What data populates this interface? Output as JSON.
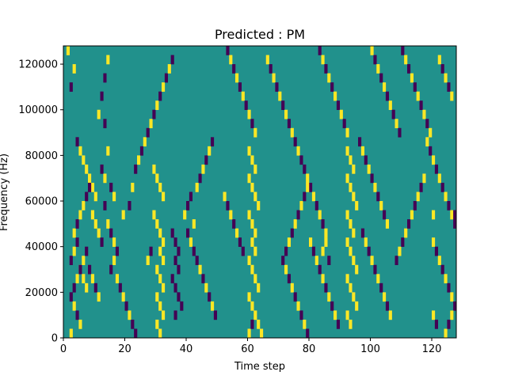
{
  "chart_data": {
    "type": "heatmap",
    "title": "Predicted : PM",
    "xlabel": "Time step",
    "ylabel": "Frequency (Hz)",
    "xlim": [
      0,
      128
    ],
    "ylim": [
      0,
      128000
    ],
    "x_ticks": [
      0,
      20,
      40,
      60,
      80,
      100,
      120
    ],
    "y_ticks": [
      0,
      20000,
      40000,
      60000,
      80000,
      100000,
      120000
    ],
    "x_tick_labels": [
      "0",
      "20",
      "40",
      "60",
      "80",
      "100",
      "120"
    ],
    "y_tick_labels": [
      "0",
      "20000",
      "40000",
      "60000",
      "80000",
      "100000",
      "120000"
    ],
    "n_time_steps": 128,
    "n_frequency_bins": 32,
    "bin_height_hz": 4000,
    "value_levels": [
      -1,
      0,
      1
    ],
    "colormap": {
      "-1": "#440154",
      "0": "#21918c",
      "1": "#fde725"
    },
    "background_value": 0,
    "grid": false,
    "cells_note": "cells lists [time_step, frequency_bin_index, value] for non-background cells; bin index i spans i*4000 to (i+1)*4000 Hz",
    "cells": [
      [
        1,
        31,
        1
      ],
      [
        2,
        27,
        -1
      ],
      [
        3,
        29,
        1
      ],
      [
        4,
        21,
        -1
      ],
      [
        5,
        20,
        1
      ],
      [
        6,
        19,
        1
      ],
      [
        7,
        18,
        1
      ],
      [
        8,
        17,
        1
      ],
      [
        9,
        16,
        1
      ],
      [
        10,
        15,
        1
      ],
      [
        3,
        11,
        1
      ],
      [
        4,
        12,
        -1
      ],
      [
        5,
        13,
        1
      ],
      [
        6,
        14,
        1
      ],
      [
        7,
        15,
        -1
      ],
      [
        8,
        16,
        -1
      ],
      [
        9,
        13,
        1
      ],
      [
        10,
        12,
        1
      ],
      [
        11,
        11,
        1
      ],
      [
        12,
        10,
        -1
      ],
      [
        2,
        8,
        -1
      ],
      [
        3,
        9,
        1
      ],
      [
        4,
        10,
        -1
      ],
      [
        5,
        7,
        1
      ],
      [
        6,
        8,
        1
      ],
      [
        7,
        9,
        -1
      ],
      [
        8,
        7,
        -1
      ],
      [
        9,
        6,
        1
      ],
      [
        10,
        5,
        -1
      ],
      [
        11,
        4,
        1
      ],
      [
        2,
        4,
        -1
      ],
      [
        3,
        3,
        1
      ],
      [
        4,
        2,
        -1
      ],
      [
        5,
        1,
        1
      ],
      [
        2,
        0,
        1
      ],
      [
        3,
        5,
        -1
      ],
      [
        4,
        6,
        1
      ],
      [
        5,
        7,
        -1
      ],
      [
        6,
        6,
        1
      ],
      [
        7,
        5,
        1
      ],
      [
        13,
        28,
        -1
      ],
      [
        14,
        30,
        1
      ],
      [
        12,
        26,
        -1
      ],
      [
        11,
        24,
        1
      ],
      [
        13,
        23,
        -1
      ],
      [
        14,
        20,
        1
      ],
      [
        12,
        18,
        -1
      ],
      [
        13,
        17,
        1
      ],
      [
        15,
        16,
        -1
      ],
      [
        16,
        15,
        1
      ],
      [
        13,
        14,
        -1
      ],
      [
        14,
        12,
        1
      ],
      [
        15,
        11,
        -1
      ],
      [
        16,
        10,
        1
      ],
      [
        17,
        9,
        -1
      ],
      [
        16,
        8,
        1
      ],
      [
        15,
        7,
        -1
      ],
      [
        17,
        6,
        1
      ],
      [
        18,
        5,
        -1
      ],
      [
        19,
        4,
        1
      ],
      [
        20,
        3,
        -1
      ],
      [
        21,
        2,
        1
      ],
      [
        22,
        1,
        -1
      ],
      [
        23,
        0,
        -1
      ],
      [
        19,
        13,
        1
      ],
      [
        21,
        14,
        -1
      ],
      [
        22,
        16,
        1
      ],
      [
        23,
        18,
        -1
      ],
      [
        24,
        19,
        1
      ],
      [
        25,
        20,
        -1
      ],
      [
        26,
        21,
        1
      ],
      [
        27,
        22,
        -1
      ],
      [
        28,
        23,
        1
      ],
      [
        29,
        24,
        -1
      ],
      [
        30,
        25,
        1
      ],
      [
        31,
        26,
        -1
      ],
      [
        32,
        27,
        1
      ],
      [
        33,
        28,
        -1
      ],
      [
        34,
        29,
        1
      ],
      [
        35,
        30,
        -1
      ],
      [
        29,
        18,
        1
      ],
      [
        30,
        17,
        1
      ],
      [
        31,
        16,
        1
      ],
      [
        32,
        15,
        1
      ],
      [
        30,
        12,
        1
      ],
      [
        31,
        11,
        1
      ],
      [
        32,
        10,
        1
      ],
      [
        31,
        9,
        1
      ],
      [
        32,
        8,
        1
      ],
      [
        30,
        7,
        1
      ],
      [
        31,
        6,
        1
      ],
      [
        32,
        5,
        1
      ],
      [
        30,
        4,
        1
      ],
      [
        31,
        3,
        1
      ],
      [
        32,
        2,
        1
      ],
      [
        30,
        1,
        1
      ],
      [
        31,
        0,
        1
      ],
      [
        29,
        13,
        1
      ],
      [
        28,
        9,
        -1
      ],
      [
        27,
        8,
        1
      ],
      [
        35,
        11,
        -1
      ],
      [
        36,
        10,
        -1
      ],
      [
        37,
        9,
        -1
      ],
      [
        36,
        8,
        -1
      ],
      [
        37,
        7,
        -1
      ],
      [
        35,
        6,
        -1
      ],
      [
        36,
        5,
        -1
      ],
      [
        37,
        4,
        -1
      ],
      [
        38,
        3,
        -1
      ],
      [
        36,
        2,
        -1
      ],
      [
        39,
        13,
        1
      ],
      [
        40,
        14,
        -1
      ],
      [
        41,
        15,
        -1
      ],
      [
        42,
        12,
        1
      ],
      [
        43,
        16,
        1
      ],
      [
        44,
        17,
        -1
      ],
      [
        45,
        18,
        1
      ],
      [
        46,
        19,
        -1
      ],
      [
        47,
        20,
        1
      ],
      [
        48,
        21,
        -1
      ],
      [
        40,
        11,
        -1
      ],
      [
        41,
        10,
        1
      ],
      [
        42,
        9,
        -1
      ],
      [
        43,
        8,
        -1
      ],
      [
        44,
        7,
        1
      ],
      [
        45,
        6,
        -1
      ],
      [
        46,
        5,
        1
      ],
      [
        47,
        4,
        -1
      ],
      [
        48,
        3,
        1
      ],
      [
        49,
        2,
        -1
      ],
      [
        53,
        31,
        -1
      ],
      [
        54,
        30,
        1
      ],
      [
        55,
        29,
        -1
      ],
      [
        56,
        28,
        1
      ],
      [
        57,
        27,
        -1
      ],
      [
        58,
        26,
        1
      ],
      [
        59,
        25,
        -1
      ],
      [
        60,
        24,
        1
      ],
      [
        61,
        23,
        -1
      ],
      [
        62,
        22,
        1
      ],
      [
        60,
        20,
        1
      ],
      [
        61,
        19,
        1
      ],
      [
        62,
        18,
        1
      ],
      [
        60,
        17,
        1
      ],
      [
        61,
        16,
        1
      ],
      [
        62,
        15,
        1
      ],
      [
        63,
        14,
        1
      ],
      [
        60,
        13,
        1
      ],
      [
        61,
        12,
        1
      ],
      [
        62,
        11,
        1
      ],
      [
        61,
        10,
        1
      ],
      [
        62,
        9,
        1
      ],
      [
        60,
        8,
        1
      ],
      [
        61,
        7,
        1
      ],
      [
        62,
        6,
        1
      ],
      [
        63,
        5,
        1
      ],
      [
        60,
        4,
        1
      ],
      [
        61,
        3,
        1
      ],
      [
        62,
        2,
        1
      ],
      [
        63,
        1,
        1
      ],
      [
        64,
        0,
        1
      ],
      [
        60,
        0,
        1
      ],
      [
        61,
        1,
        -1
      ],
      [
        58,
        9,
        -1
      ],
      [
        57,
        10,
        -1
      ],
      [
        56,
        11,
        1
      ],
      [
        55,
        12,
        -1
      ],
      [
        54,
        13,
        1
      ],
      [
        53,
        14,
        -1
      ],
      [
        52,
        15,
        1
      ],
      [
        66,
        30,
        1
      ],
      [
        67,
        29,
        -1
      ],
      [
        68,
        28,
        1
      ],
      [
        69,
        27,
        -1
      ],
      [
        70,
        26,
        1
      ],
      [
        71,
        25,
        -1
      ],
      [
        72,
        24,
        1
      ],
      [
        73,
        23,
        -1
      ],
      [
        74,
        22,
        1
      ],
      [
        75,
        21,
        -1
      ],
      [
        76,
        20,
        1
      ],
      [
        77,
        19,
        -1
      ],
      [
        78,
        18,
        -1
      ],
      [
        79,
        17,
        1
      ],
      [
        80,
        16,
        -1
      ],
      [
        81,
        15,
        1
      ],
      [
        82,
        14,
        -1
      ],
      [
        83,
        13,
        1
      ],
      [
        84,
        12,
        -1
      ],
      [
        85,
        11,
        1
      ],
      [
        71,
        8,
        -1
      ],
      [
        72,
        7,
        1
      ],
      [
        73,
        6,
        -1
      ],
      [
        74,
        5,
        1
      ],
      [
        75,
        4,
        -1
      ],
      [
        76,
        3,
        1
      ],
      [
        77,
        2,
        -1
      ],
      [
        78,
        1,
        1
      ],
      [
        79,
        0,
        -1
      ],
      [
        72,
        9,
        -1
      ],
      [
        73,
        10,
        1
      ],
      [
        74,
        11,
        -1
      ],
      [
        75,
        12,
        1
      ],
      [
        76,
        13,
        -1
      ],
      [
        77,
        14,
        1
      ],
      [
        78,
        15,
        -1
      ],
      [
        79,
        16,
        1
      ],
      [
        80,
        10,
        1
      ],
      [
        81,
        9,
        -1
      ],
      [
        82,
        8,
        1
      ],
      [
        83,
        7,
        -1
      ],
      [
        84,
        6,
        1
      ],
      [
        85,
        5,
        -1
      ],
      [
        86,
        4,
        1
      ],
      [
        87,
        3,
        -1
      ],
      [
        88,
        2,
        1
      ],
      [
        89,
        1,
        -1
      ],
      [
        84,
        9,
        1
      ],
      [
        85,
        10,
        1
      ],
      [
        86,
        8,
        -1
      ],
      [
        83,
        31,
        -1
      ],
      [
        84,
        30,
        1
      ],
      [
        85,
        29,
        -1
      ],
      [
        86,
        28,
        1
      ],
      [
        87,
        27,
        -1
      ],
      [
        88,
        26,
        1
      ],
      [
        89,
        25,
        -1
      ],
      [
        90,
        24,
        1
      ],
      [
        91,
        23,
        -1
      ],
      [
        92,
        22,
        1
      ],
      [
        92,
        20,
        1
      ],
      [
        93,
        19,
        1
      ],
      [
        94,
        18,
        1
      ],
      [
        92,
        17,
        1
      ],
      [
        93,
        16,
        1
      ],
      [
        94,
        15,
        1
      ],
      [
        95,
        14,
        1
      ],
      [
        92,
        13,
        1
      ],
      [
        93,
        12,
        1
      ],
      [
        94,
        11,
        1
      ],
      [
        92,
        10,
        1
      ],
      [
        93,
        9,
        1
      ],
      [
        94,
        8,
        1
      ],
      [
        95,
        7,
        1
      ],
      [
        92,
        6,
        1
      ],
      [
        93,
        5,
        1
      ],
      [
        94,
        4,
        1
      ],
      [
        95,
        3,
        1
      ],
      [
        92,
        2,
        1
      ],
      [
        93,
        1,
        1
      ],
      [
        96,
        21,
        -1
      ],
      [
        97,
        20,
        1
      ],
      [
        98,
        19,
        -1
      ],
      [
        99,
        18,
        1
      ],
      [
        100,
        17,
        -1
      ],
      [
        101,
        16,
        1
      ],
      [
        102,
        15,
        -1
      ],
      [
        103,
        14,
        1
      ],
      [
        104,
        13,
        -1
      ],
      [
        105,
        12,
        1
      ],
      [
        97,
        11,
        -1
      ],
      [
        98,
        10,
        1
      ],
      [
        99,
        9,
        -1
      ],
      [
        100,
        8,
        1
      ],
      [
        101,
        7,
        -1
      ],
      [
        102,
        6,
        1
      ],
      [
        103,
        5,
        -1
      ],
      [
        104,
        4,
        1
      ],
      [
        105,
        3,
        -1
      ],
      [
        106,
        2,
        1
      ],
      [
        100,
        31,
        1
      ],
      [
        101,
        30,
        -1
      ],
      [
        102,
        29,
        1
      ],
      [
        103,
        28,
        -1
      ],
      [
        104,
        27,
        1
      ],
      [
        105,
        26,
        -1
      ],
      [
        106,
        25,
        1
      ],
      [
        107,
        24,
        -1
      ],
      [
        108,
        23,
        1
      ],
      [
        109,
        22,
        -1
      ],
      [
        108,
        8,
        -1
      ],
      [
        109,
        9,
        1
      ],
      [
        110,
        10,
        -1
      ],
      [
        111,
        11,
        1
      ],
      [
        112,
        12,
        -1
      ],
      [
        113,
        13,
        1
      ],
      [
        114,
        14,
        -1
      ],
      [
        115,
        15,
        1
      ],
      [
        116,
        16,
        -1
      ],
      [
        117,
        17,
        1
      ],
      [
        110,
        31,
        -1
      ],
      [
        111,
        30,
        1
      ],
      [
        112,
        29,
        -1
      ],
      [
        113,
        28,
        1
      ],
      [
        114,
        27,
        -1
      ],
      [
        115,
        26,
        1
      ],
      [
        116,
        25,
        -1
      ],
      [
        117,
        24,
        1
      ],
      [
        118,
        23,
        -1
      ],
      [
        119,
        22,
        1
      ],
      [
        118,
        21,
        1
      ],
      [
        119,
        20,
        -1
      ],
      [
        120,
        19,
        1
      ],
      [
        121,
        18,
        -1
      ],
      [
        122,
        17,
        1
      ],
      [
        123,
        16,
        -1
      ],
      [
        124,
        15,
        1
      ],
      [
        125,
        14,
        -1
      ],
      [
        126,
        13,
        1
      ],
      [
        127,
        12,
        -1
      ],
      [
        120,
        10,
        1
      ],
      [
        121,
        9,
        -1
      ],
      [
        122,
        8,
        1
      ],
      [
        123,
        7,
        -1
      ],
      [
        124,
        6,
        1
      ],
      [
        125,
        5,
        -1
      ],
      [
        126,
        4,
        1
      ],
      [
        127,
        3,
        -1
      ],
      [
        120,
        2,
        1
      ],
      [
        121,
        1,
        -1
      ],
      [
        124,
        0,
        1
      ],
      [
        125,
        1,
        -1
      ],
      [
        126,
        2,
        1
      ],
      [
        127,
        13,
        -1
      ],
      [
        120,
        13,
        1
      ],
      [
        122,
        30,
        1
      ],
      [
        123,
        29,
        -1
      ],
      [
        124,
        28,
        1
      ],
      [
        125,
        27,
        -1
      ],
      [
        126,
        26,
        1
      ]
    ]
  }
}
